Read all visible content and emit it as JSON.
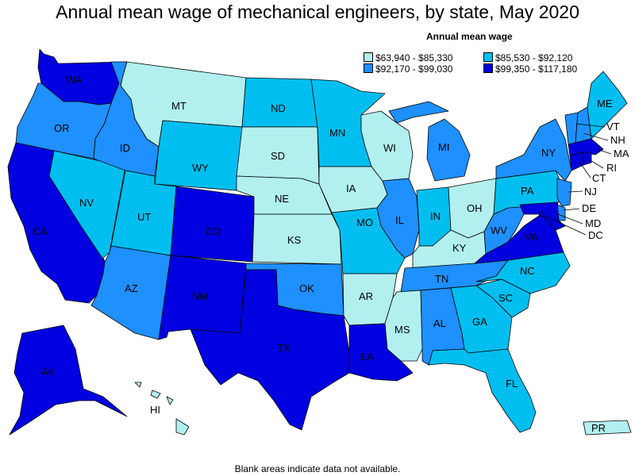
{
  "title": "Annual mean wage of mechanical engineers, by state, May 2020",
  "legend": {
    "title": "Annual mean wage",
    "items": [
      {
        "range": "$63,940 - $85,330",
        "color": "#b2f0f0"
      },
      {
        "range": "$85,530 - $92,120",
        "color": "#00bff0"
      },
      {
        "range": "$92,170 - $99,030",
        "color": "#1e90ff"
      },
      {
        "range": "$99,350 - $117,180",
        "color": "#0000e0"
      }
    ]
  },
  "footnote": "Blank areas indicate data not available.",
  "states": {
    "WA": {
      "label": "WA",
      "tier": 3
    },
    "OR": {
      "label": "OR",
      "tier": 2
    },
    "CA": {
      "label": "CA",
      "tier": 3
    },
    "NV": {
      "label": "NV",
      "tier": 1
    },
    "ID": {
      "label": "ID",
      "tier": 2
    },
    "MT": {
      "label": "MT",
      "tier": 0
    },
    "WY": {
      "label": "WY",
      "tier": 1
    },
    "UT": {
      "label": "UT",
      "tier": 1
    },
    "AZ": {
      "label": "AZ",
      "tier": 2
    },
    "CO": {
      "label": "CO",
      "tier": 3
    },
    "NM": {
      "label": "NM",
      "tier": 3
    },
    "ND": {
      "label": "ND",
      "tier": 1
    },
    "SD": {
      "label": "SD",
      "tier": 0
    },
    "NE": {
      "label": "NE",
      "tier": 0
    },
    "KS": {
      "label": "KS",
      "tier": 0
    },
    "OK": {
      "label": "OK",
      "tier": 2
    },
    "TX": {
      "label": "TX",
      "tier": 3
    },
    "MN": {
      "label": "MN",
      "tier": 1
    },
    "IA": {
      "label": "IA",
      "tier": 0
    },
    "MO": {
      "label": "MO",
      "tier": 1
    },
    "AR": {
      "label": "AR",
      "tier": 0
    },
    "LA": {
      "label": "LA",
      "tier": 3
    },
    "WI": {
      "label": "WI",
      "tier": 0
    },
    "IL": {
      "label": "IL",
      "tier": 2
    },
    "MI": {
      "label": "MI",
      "tier": 2
    },
    "IN": {
      "label": "IN",
      "tier": 1
    },
    "OH": {
      "label": "OH",
      "tier": 0
    },
    "KY": {
      "label": "KY",
      "tier": 0
    },
    "TN": {
      "label": "TN",
      "tier": 2
    },
    "MS": {
      "label": "MS",
      "tier": 0
    },
    "AL": {
      "label": "AL",
      "tier": 2
    },
    "GA": {
      "label": "GA",
      "tier": 1
    },
    "FL": {
      "label": "FL",
      "tier": 1
    },
    "SC": {
      "label": "SC",
      "tier": 1
    },
    "NC": {
      "label": "NC",
      "tier": 1
    },
    "VA": {
      "label": "VA",
      "tier": 3
    },
    "WV": {
      "label": "WV",
      "tier": 2
    },
    "PA": {
      "label": "PA",
      "tier": 1
    },
    "NY": {
      "label": "NY",
      "tier": 2
    },
    "ME": {
      "label": "ME",
      "tier": 1
    },
    "VT": {
      "label": "VT",
      "tier": 2
    },
    "NH": {
      "label": "NH",
      "tier": 2
    },
    "MA": {
      "label": "MA",
      "tier": 3
    },
    "RI": {
      "label": "RI",
      "tier": 3
    },
    "CT": {
      "label": "CT",
      "tier": 3
    },
    "NJ": {
      "label": "NJ",
      "tier": 2
    },
    "DE": {
      "label": "DE",
      "tier": 2
    },
    "MD": {
      "label": "MD",
      "tier": 3
    },
    "DC": {
      "label": "DC",
      "tier": 3
    },
    "AK": {
      "label": "AK",
      "tier": 3
    },
    "HI": {
      "label": "HI",
      "tier": 0
    },
    "PR": {
      "label": "PR",
      "tier": 0
    }
  }
}
